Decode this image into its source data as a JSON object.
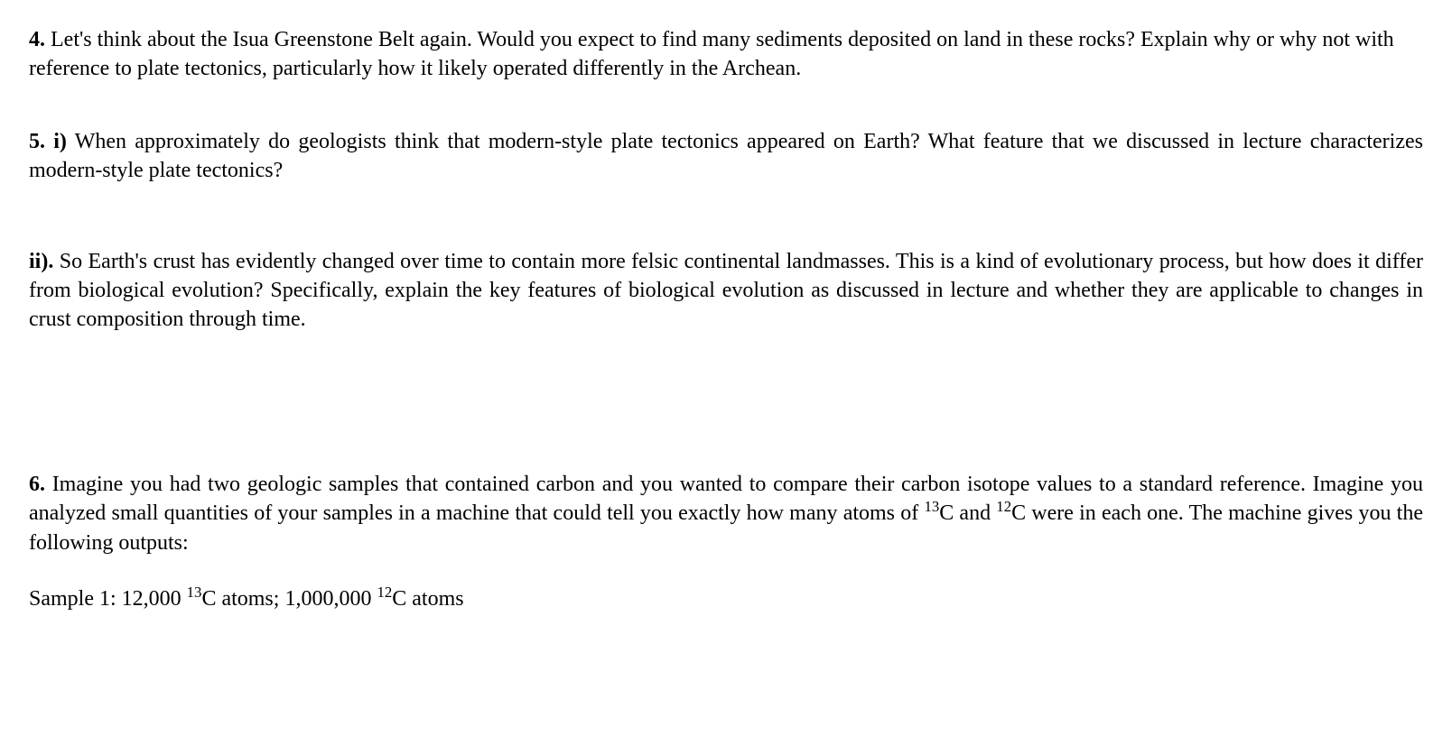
{
  "q4": {
    "num": "4.",
    "text": " Let's think about the Isua Greenstone Belt again. Would you expect to find many sediments deposited on land in these rocks? Explain why or why not with reference to plate tectonics, particularly how it likely operated differently in the Archean."
  },
  "q5i": {
    "num": "5. i)",
    "text": " When approximately do geologists think that modern-style plate tectonics appeared on Earth? What feature that we discussed in lecture characterizes modern-style plate tectonics?"
  },
  "q5ii": {
    "num": "ii).",
    "text": " So Earth's crust has evidently changed over time to contain more felsic continental landmasses. This is a kind of evolutionary process, but how does it differ from biological evolution? Specifically, explain the key features of biological evolution as discussed in lecture and whether they are applicable to changes in crust composition through time."
  },
  "q6intro": {
    "num": "6.",
    "text_a": " Imagine you had two geologic samples that contained carbon and you wanted to compare their carbon isotope values to a standard reference. Imagine you analyzed small quantities of your samples in a machine that could tell you exactly how many atoms of ",
    "sup1": "13",
    "c1": "C and ",
    "sup2": "12",
    "c2": "C were in each one. The machine gives you the following outputs:"
  },
  "q6sample": {
    "label": "Sample 1: 12,000 ",
    "sup1": "13",
    "mid": "C atoms; 1,000,000 ",
    "sup2": "12",
    "end": "C atoms"
  }
}
